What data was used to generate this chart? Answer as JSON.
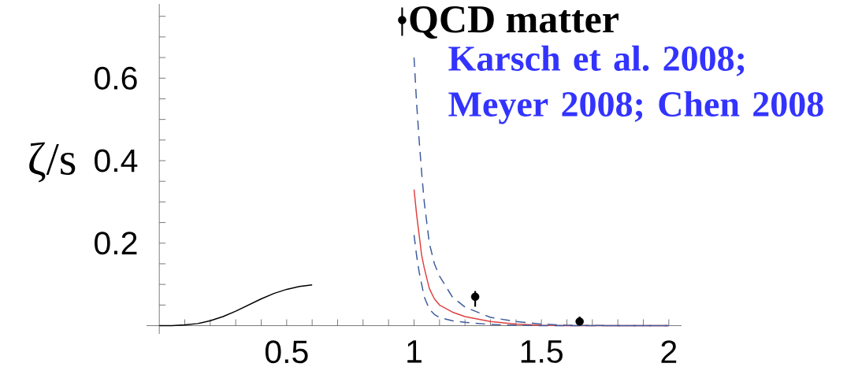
{
  "chart_data": {
    "type": "line",
    "ylabel": "ζ/s",
    "xlim": [
      -0.05,
      2.05
    ],
    "ylim": [
      -0.02,
      0.78
    ],
    "xticks": [
      {
        "value": 0.1,
        "label": null
      },
      {
        "value": 0.2,
        "label": null
      },
      {
        "value": 0.3,
        "label": null
      },
      {
        "value": 0.4,
        "label": null
      },
      0.5,
      {
        "value": 0.6,
        "label": null
      },
      {
        "value": 0.7,
        "label": null
      },
      {
        "value": 0.8,
        "label": null
      },
      {
        "value": 0.9,
        "label": null
      },
      1,
      {
        "value": 1.1,
        "label": null
      },
      {
        "value": 1.2,
        "label": null
      },
      {
        "value": 1.3,
        "label": null
      },
      {
        "value": 1.4,
        "label": null
      },
      1.5,
      {
        "value": 1.6,
        "label": null
      },
      {
        "value": 1.7,
        "label": null
      },
      {
        "value": 1.8,
        "label": null
      },
      {
        "value": 1.9,
        "label": null
      },
      2
    ],
    "yticks": [
      {
        "value": 0.05,
        "label": null
      },
      {
        "value": 0.1,
        "label": null
      },
      {
        "value": 0.15,
        "label": null
      },
      0.2,
      {
        "value": 0.25,
        "label": null
      },
      {
        "value": 0.3,
        "label": null
      },
      {
        "value": 0.35,
        "label": null
      },
      0.4,
      {
        "value": 0.45,
        "label": null
      },
      {
        "value": 0.5,
        "label": null
      },
      {
        "value": 0.55,
        "label": null
      },
      0.6,
      {
        "value": 0.65,
        "label": null
      },
      {
        "value": 0.7,
        "label": null
      },
      {
        "value": 0.75,
        "label": null
      }
    ],
    "legend": "top right",
    "grid": false,
    "series": [
      {
        "color": "#000000",
        "x": [
          0,
          0.05,
          0.1,
          0.15,
          0.2,
          0.25,
          0.3,
          0.35,
          0.4,
          0.45,
          0.5,
          0.55,
          0.6
        ],
        "values": [
          0,
          0,
          0.002,
          0.005,
          0.012,
          0.022,
          0.035,
          0.05,
          0.065,
          0.078,
          0.088,
          0.095,
          0.099
        ]
      },
      {
        "color": "#e04040",
        "x": [
          1.0,
          1.01,
          1.02,
          1.03,
          1.04,
          1.06,
          1.08,
          1.1,
          1.15,
          1.2,
          1.3,
          1.4,
          1.5,
          1.6,
          1.8,
          2.0
        ],
        "values": [
          0.33,
          0.27,
          0.22,
          0.17,
          0.14,
          0.09,
          0.065,
          0.05,
          0.033,
          0.022,
          0.01,
          0.004,
          0.001,
          0,
          0,
          0
        ]
      },
      {
        "color": "#3d5a9a",
        "line_style": "dashed",
        "x": [
          1.0,
          1.01,
          1.02,
          1.03,
          1.04,
          1.06,
          1.08,
          1.1,
          1.15,
          1.2,
          1.3,
          1.4,
          1.5,
          1.6,
          1.8,
          2.0
        ],
        "values": [
          0.65,
          0.54,
          0.45,
          0.37,
          0.3,
          0.2,
          0.15,
          0.12,
          0.07,
          0.045,
          0.02,
          0.01,
          0.004,
          0.001,
          0,
          0
        ]
      },
      {
        "color": "#3d5a9a",
        "line_style": "dashed",
        "x": [
          1.0,
          1.01,
          1.02,
          1.03,
          1.04,
          1.06,
          1.08,
          1.1,
          1.15,
          1.2,
          1.3,
          1.4,
          1.5,
          1.6,
          1.8,
          2.0
        ],
        "values": [
          0.22,
          0.17,
          0.13,
          0.1,
          0.07,
          0.04,
          0.027,
          0.02,
          0.012,
          0.008,
          0.003,
          0.001,
          0,
          0,
          0,
          0
        ]
      },
      {
        "type": "scatter",
        "name": "QCD matter",
        "color": "#000000",
        "marker": "circle",
        "x": [
          1.24,
          1.65
        ],
        "values": [
          0.07,
          0.01
        ],
        "errors": [
          [
            0.046,
            0.084
          ],
          [
            0.004,
            0.022
          ]
        ]
      }
    ],
    "annotations": [
      "Karsch et al. 2008; Meyer 2008; Chen 2008"
    ]
  }
}
